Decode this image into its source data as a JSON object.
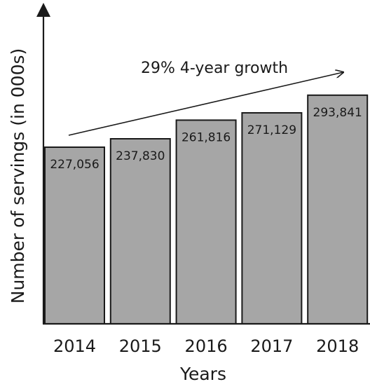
{
  "chart_data": {
    "type": "bar",
    "categories": [
      "2014",
      "2015",
      "2016",
      "2017",
      "2018"
    ],
    "values": [
      227056,
      237830,
      261816,
      271129,
      293841
    ],
    "data_labels": [
      "227,056",
      "237,830",
      "261,816",
      "271,129",
      "293,841"
    ],
    "xlabel": "Years",
    "ylabel": "Number of servings (in 000s)",
    "ylim": [
      0,
      400000
    ],
    "grid": false,
    "annotation": "29% 4-year growth",
    "colors": {
      "bar": "#a6a6a6",
      "bar_stroke": "#1a1a1a",
      "axis": "#1a1a1a"
    }
  }
}
